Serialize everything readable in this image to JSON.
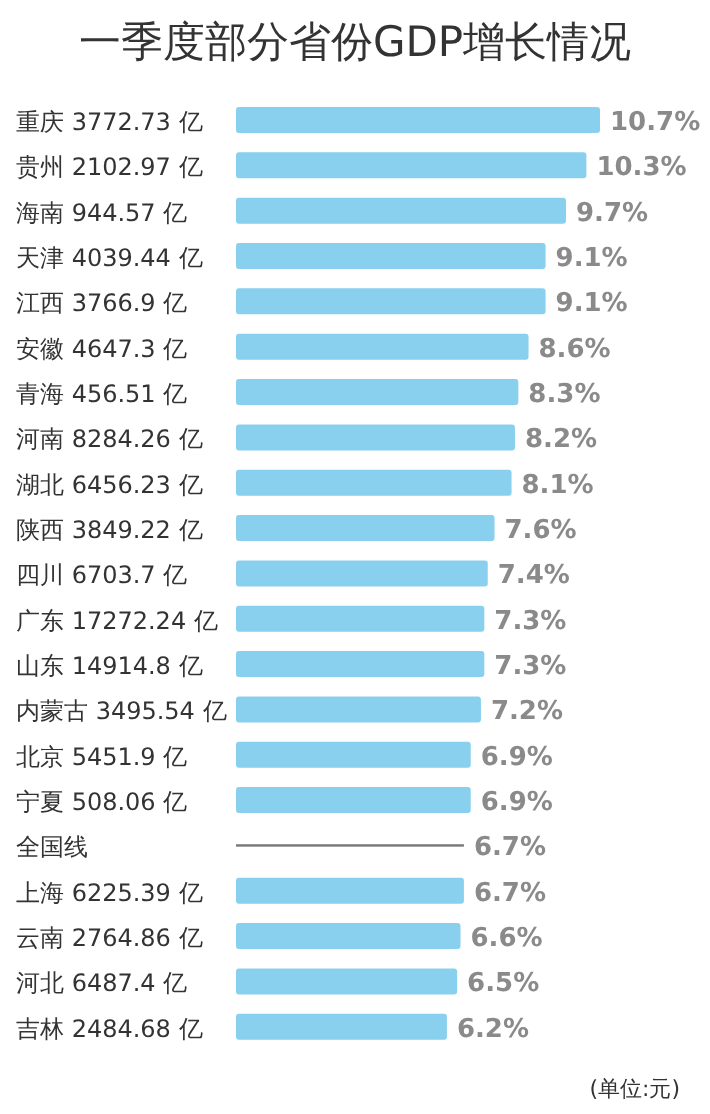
{
  "chart_data": {
    "type": "bar",
    "orientation": "horizontal",
    "title": "一季度部分省份GDP增长情况",
    "categories": [
      "重庆 3772.73 亿",
      "贵州 2102.97 亿",
      "海南 944.57 亿",
      "天津 4039.44 亿",
      "江西 3766.9 亿",
      "安徽 4647.3 亿",
      "青海 456.51 亿",
      "河南 8284.26 亿",
      "湖北 6456.23 亿",
      "陕西 3849.22 亿",
      "四川 6703.7 亿",
      "广东 17272.24 亿",
      "山东 14914.8 亿",
      "内蒙古 3495.54 亿",
      "北京 5451.9 亿",
      "宁夏 508.06 亿",
      "全国线",
      "上海 6225.39 亿",
      "云南 2764.86 亿",
      "河北 6487.4 亿",
      "吉林 2484.68 亿"
    ],
    "series": [
      {
        "color": "#89d0ee",
        "values": [
          10.7,
          10.3,
          9.7,
          9.1,
          9.1,
          8.6,
          8.3,
          8.2,
          8.1,
          7.6,
          7.4,
          7.3,
          7.3,
          7.2,
          6.9,
          6.9,
          null,
          6.7,
          6.6,
          6.5,
          6.2
        ],
        "value_labels": [
          "10.7%",
          "10.3%",
          "9.7%",
          "9.1%",
          "9.1%",
          "8.6%",
          "8.3%",
          "8.2%",
          "8.1%",
          "7.6%",
          "7.4%",
          "7.3%",
          "7.3%",
          "7.2%",
          "6.9%",
          "6.9%",
          null,
          "6.7%",
          "6.6%",
          "6.5%",
          "6.2%"
        ]
      },
      {
        "type": "bar",
        "line_style": "solid",
        "color": "#777777",
        "values": [
          null,
          null,
          null,
          null,
          null,
          null,
          null,
          null,
          null,
          null,
          null,
          null,
          null,
          null,
          null,
          null,
          6.7,
          null,
          null,
          null,
          null
        ],
        "value_labels": [
          null,
          null,
          null,
          null,
          null,
          null,
          null,
          null,
          null,
          null,
          null,
          null,
          null,
          null,
          null,
          null,
          "6.7%",
          null,
          null,
          null,
          null
        ]
      }
    ],
    "annotations": [
      "(单位:元)"
    ]
  }
}
